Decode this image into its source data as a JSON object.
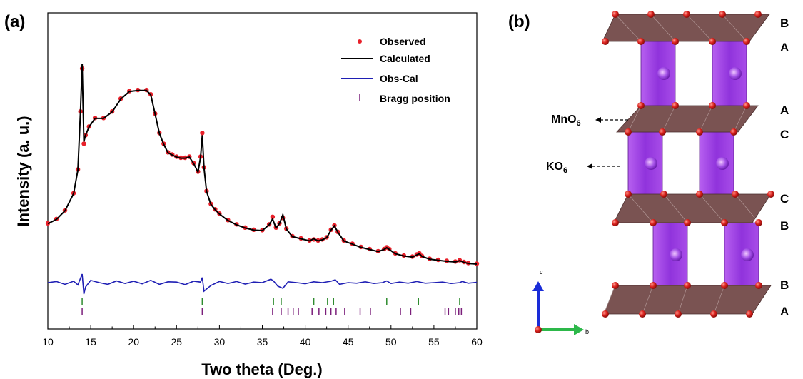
{
  "panel_a": {
    "label": "(a)",
    "chart_data": {
      "type": "line",
      "xlabel": "Two theta (Deg.)",
      "ylabel": "Intensity (a. u.)",
      "xlim": [
        10,
        60
      ],
      "x_ticks": [
        "10",
        "15",
        "20",
        "25",
        "30",
        "35",
        "40",
        "45",
        "50",
        "55",
        "60"
      ],
      "legend_position": "top-right",
      "legend": [
        "Observed",
        "Calculated",
        "Obs-Cal",
        "Bragg position"
      ],
      "colors": {
        "observed": "#e8202a",
        "calculated": "#000000",
        "difference": "#1f1fb4",
        "bragg_phase1": "#2e8b2e",
        "bragg_phase2": "#7b1f7b"
      },
      "series": [
        {
          "name": "Observed",
          "style": "dots",
          "x": [
            10,
            11,
            12,
            13,
            13.5,
            13.8,
            14.0,
            14.2,
            14.4,
            14.8,
            15.5,
            16.5,
            17.5,
            18.5,
            19.5,
            20.5,
            21.5,
            22.0,
            22.5,
            23.0,
            23.5,
            24.0,
            24.5,
            25.0,
            25.5,
            26.0,
            26.5,
            27.0,
            27.5,
            27.8,
            28.0,
            28.2,
            28.5,
            29.0,
            29.5,
            30.0,
            31.0,
            32.0,
            33.0,
            34.0,
            35.0,
            35.8,
            36.2,
            36.6,
            37.0,
            37.4,
            37.8,
            38.5,
            39.5,
            40.5,
            41.0,
            41.5,
            42.0,
            42.5,
            43.0,
            43.4,
            43.8,
            44.5,
            45.5,
            46.5,
            47.5,
            48.5,
            49.2,
            49.5,
            49.8,
            50.5,
            51.5,
            52.5,
            53.0,
            53.3,
            53.6,
            54.5,
            55.5,
            56.5,
            57.5,
            58.0,
            58.5,
            59.0,
            60
          ],
          "y": [
            280,
            300,
            340,
            420,
            530,
            800,
            1000,
            650,
            690,
            730,
            770,
            770,
            800,
            860,
            895,
            900,
            900,
            880,
            790,
            700,
            650,
            610,
            600,
            590,
            585,
            585,
            590,
            560,
            520,
            590,
            700,
            540,
            430,
            370,
            345,
            325,
            295,
            275,
            260,
            250,
            248,
            275,
            310,
            260,
            280,
            305,
            255,
            220,
            210,
            200,
            205,
            200,
            205,
            215,
            250,
            270,
            240,
            200,
            185,
            170,
            160,
            150,
            160,
            168,
            160,
            140,
            130,
            125,
            135,
            140,
            128,
            115,
            110,
            105,
            102,
            108,
            100,
            95,
            92
          ]
        },
        {
          "name": "Calculated",
          "style": "line",
          "x": [
            10,
            11,
            12,
            13,
            13.5,
            13.8,
            14.0,
            14.2,
            14.4,
            14.8,
            15.5,
            16.5,
            17.5,
            18.5,
            19.5,
            20.5,
            21.5,
            22.0,
            22.5,
            23.0,
            23.5,
            24.0,
            24.5,
            25.0,
            25.5,
            26.0,
            26.5,
            27.0,
            27.5,
            27.8,
            28.0,
            28.2,
            28.5,
            29.0,
            29.5,
            30.0,
            31.0,
            32.0,
            33.0,
            34.0,
            35.0,
            35.8,
            36.2,
            36.6,
            37.0,
            37.4,
            37.8,
            38.5,
            39.5,
            40.5,
            41.0,
            41.5,
            42.0,
            42.5,
            43.0,
            43.4,
            43.8,
            44.5,
            45.5,
            46.5,
            47.5,
            48.5,
            49.2,
            49.5,
            49.8,
            50.5,
            51.5,
            52.5,
            53.0,
            53.3,
            53.6,
            54.5,
            55.5,
            56.5,
            57.5,
            58.0,
            58.5,
            59.0,
            60
          ],
          "y": [
            278,
            298,
            338,
            418,
            528,
            798,
            1020,
            660,
            690,
            728,
            768,
            768,
            798,
            858,
            893,
            898,
            898,
            878,
            788,
            698,
            648,
            608,
            598,
            588,
            583,
            583,
            588,
            558,
            518,
            588,
            690,
            538,
            428,
            368,
            343,
            323,
            293,
            273,
            258,
            248,
            246,
            273,
            300,
            258,
            278,
            320,
            253,
            218,
            208,
            198,
            208,
            198,
            203,
            213,
            248,
            268,
            238,
            198,
            183,
            168,
            158,
            148,
            158,
            166,
            158,
            138,
            128,
            123,
            133,
            138,
            126,
            113,
            108,
            103,
            100,
            106,
            98,
            93,
            90
          ]
        },
        {
          "name": "Obs-Cal",
          "style": "line",
          "x": [
            10,
            11,
            12,
            13,
            13.5,
            13.8,
            14.0,
            14.2,
            14.4,
            15,
            16,
            17,
            18,
            19,
            20,
            21,
            22,
            23,
            24,
            25,
            26,
            27,
            27.8,
            28.0,
            28.2,
            29,
            30,
            31,
            32,
            33,
            34,
            35,
            36,
            36.3,
            36.8,
            37.4,
            38,
            39,
            40,
            41,
            42,
            43,
            43.5,
            44,
            45,
            46,
            47,
            48,
            49,
            49.5,
            50,
            51,
            52,
            53,
            54,
            55,
            56,
            57,
            58,
            58.3,
            59,
            60
          ],
          "y": [
            0,
            4,
            -6,
            5,
            -8,
            15,
            30,
            -40,
            -15,
            8,
            0,
            -6,
            6,
            -3,
            5,
            -4,
            8,
            -6,
            3,
            2,
            -7,
            5,
            2,
            18,
            -30,
            -10,
            4,
            -3,
            4,
            -5,
            2,
            0,
            12,
            6,
            -12,
            -20,
            3,
            0,
            -4,
            3,
            0,
            5,
            10,
            -6,
            0,
            -2,
            3,
            -3,
            0,
            6,
            -3,
            2,
            -2,
            4,
            -2,
            0,
            2,
            -3,
            0,
            4,
            -2,
            1
          ]
        }
      ],
      "bragg_positions": {
        "phase1": [
          14.0,
          28.0,
          36.3,
          37.2,
          41.0,
          42.6,
          43.3,
          49.5,
          53.2,
          58.0
        ],
        "phase2": [
          14.0,
          28.0,
          36.2,
          37.2,
          38.0,
          38.6,
          39.2,
          40.8,
          41.6,
          42.4,
          43.0,
          43.6,
          44.6,
          46.4,
          47.6,
          51.1,
          52.3,
          56.3,
          56.7,
          57.5,
          57.9,
          58.2
        ]
      }
    }
  },
  "panel_b": {
    "label": "(b)",
    "stacking_letters": [
      "B",
      "A",
      "A",
      "C",
      "C",
      "B",
      "B",
      "A"
    ],
    "annotations": {
      "mno6": {
        "base": "MnO",
        "sub": "6"
      },
      "ko6": {
        "base": "KO",
        "sub": "6"
      }
    },
    "axes_glyph": {
      "c": "c",
      "b": "b"
    },
    "colors": {
      "mno6_layer": "#7a5352",
      "ko6_prism": "#9b3fe0",
      "oxygen": "#d8201c",
      "c_axis": "#1a2cd8",
      "b_axis": "#2db84a"
    }
  }
}
